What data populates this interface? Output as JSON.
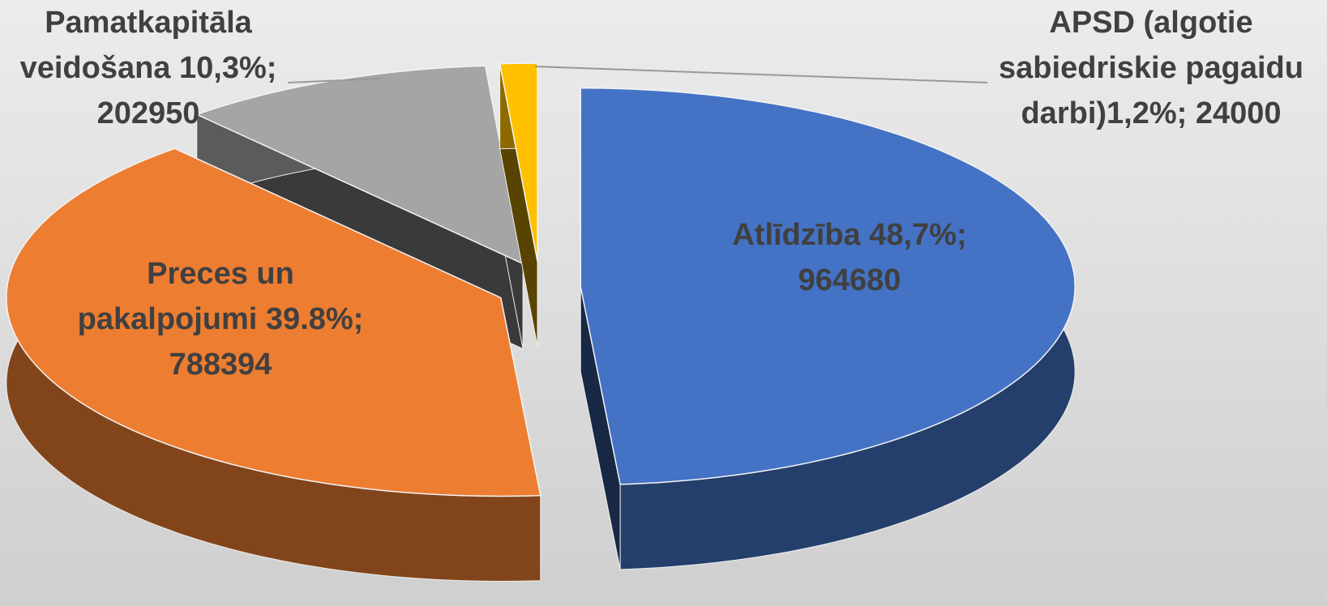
{
  "chart_data": {
    "type": "pie",
    "values": [
      964680,
      788394,
      202950,
      24000
    ],
    "value_labels": [
      [
        "Atlīdzība 48,7%;",
        "964680"
      ],
      [
        "Preces un",
        "pakalpojumi 39.8%;",
        "788394"
      ],
      [
        "Pamatkapitāla",
        "veidošana 10,3%;",
        "202950"
      ],
      [
        "APSD (algotie",
        "sabiedriskie pagaidu",
        "darbi)1,2%; 24000"
      ]
    ],
    "colors": [
      "#4472c4",
      "#ed7d31",
      "#a5a5a5",
      "#ffc000"
    ]
  }
}
